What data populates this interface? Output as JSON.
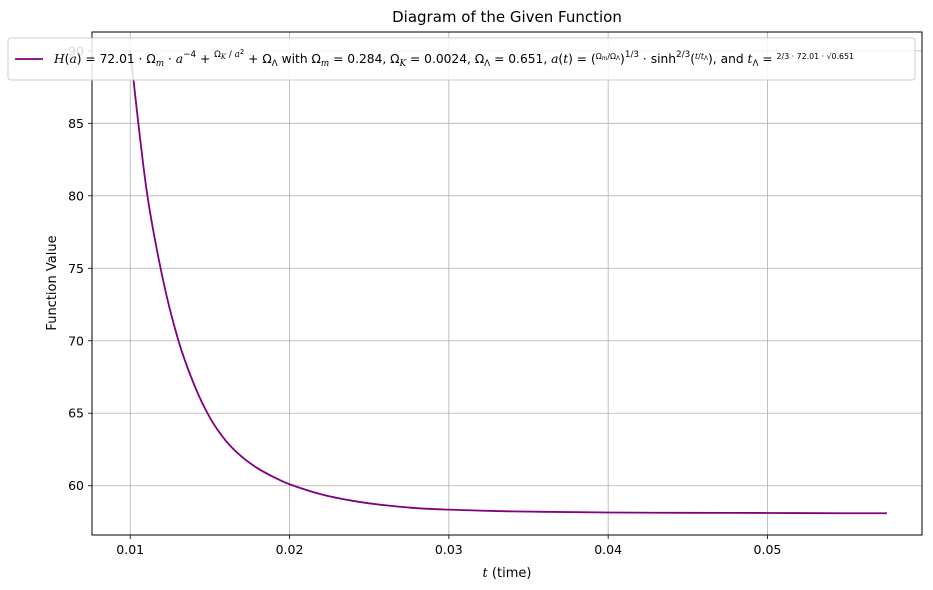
{
  "chart_data": {
    "type": "line",
    "title": "Diagram of the Given Function",
    "xlabel_math": "t",
    "xlabel": "(time)",
    "ylabel": "Function Value",
    "xlim": [
      0.0076,
      0.0597
    ],
    "ylim": [
      56.6,
      91.3
    ],
    "xticks": [
      0.01,
      0.02,
      0.03,
      0.04,
      0.05
    ],
    "xtick_labels": [
      "0.01",
      "0.02",
      "0.03",
      "0.04",
      "0.05"
    ],
    "yticks": [
      60,
      65,
      70,
      75,
      80,
      85,
      90
    ],
    "ytick_labels": [
      "60",
      "65",
      "70",
      "75",
      "80",
      "85",
      "90"
    ],
    "grid": true,
    "legend_position": "top",
    "series": [
      {
        "name": "H(a) = 72.01 · √(Ω_m · a^−4 + Ω_K/a² + Ω_Λ) with Ω_m = 0.284, Ω_K = 0.0024, Ω_Λ = 0.651, a(t) = (Ω_m/Ω_Λ)^1/3 · sinh^2/3(t/t_Λ), and t_Λ = 2/(3 · 72.01 · √0.651)",
        "color": "#800080",
        "x": [
          0.01,
          0.011,
          0.012,
          0.013,
          0.014,
          0.015,
          0.016,
          0.017,
          0.018,
          0.019,
          0.02,
          0.022,
          0.024,
          0.026,
          0.028,
          0.03,
          0.033,
          0.036,
          0.04,
          0.045,
          0.05,
          0.055,
          0.0575
        ],
        "values": [
          90.0,
          80.6,
          74.5,
          70.1,
          67.0,
          64.7,
          63.1,
          62.0,
          61.2,
          60.6,
          60.1,
          59.4,
          58.95,
          58.65,
          58.45,
          58.35,
          58.25,
          58.2,
          58.15,
          58.13,
          58.12,
          58.1,
          58.1
        ]
      }
    ],
    "legend": {
      "p1": "H",
      "p2": "(",
      "p3": "a",
      "p4": ") = 72.01 · ",
      "p5": "Ω",
      "p6": "m",
      "p7": " · ",
      "p8": "a",
      "p9": "−4",
      "p10": " + ",
      "p11": "Ω",
      "p12": "K",
      "p13": "a",
      "p14": "2",
      "p15": " + ",
      "p16": "Ω",
      "p17": "Λ",
      "p18": " with ",
      "p19": "Ω",
      "p20": "m",
      "p21": " = 0.284, ",
      "p22": "Ω",
      "p23": "K",
      "p24": " = 0.0024, ",
      "p25": "Ω",
      "p26": "Λ",
      "p27": " = 0.651, ",
      "p28": "a",
      "p29": "(",
      "p30": "t",
      "p31": ") = ",
      "p32": "1/3",
      "p33": " · sinh",
      "p34": "2/3",
      "p35": ", and ",
      "p36": "t",
      "p37": "Λ",
      "p38": " = ",
      "frac1_num": "Ω",
      "frac1_num_sub": "m",
      "frac1_den": "Ω",
      "frac1_den_sub": "Λ",
      "frac2_num": "t",
      "frac2_den": "t",
      "frac2_den_sub": "Λ",
      "frac3_num": "2",
      "frac3_den": "3 · 72.01 · √0.651",
      "lparen": "(",
      "rparen": ")"
    }
  }
}
